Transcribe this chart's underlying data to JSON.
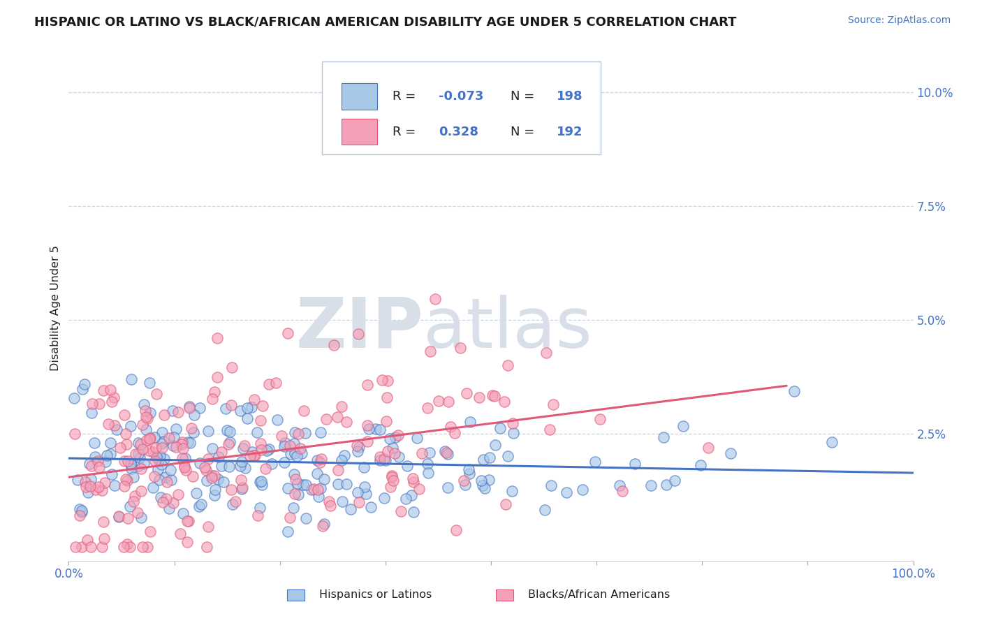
{
  "title": "HISPANIC OR LATINO VS BLACK/AFRICAN AMERICAN DISABILITY AGE UNDER 5 CORRELATION CHART",
  "source": "Source: ZipAtlas.com",
  "ylabel": "Disability Age Under 5",
  "xlim": [
    0.0,
    1.0
  ],
  "ylim": [
    -0.003,
    0.108
  ],
  "yticks": [
    0.025,
    0.05,
    0.075,
    0.1
  ],
  "ytick_labels": [
    "2.5%",
    "5.0%",
    "7.5%",
    "10.0%"
  ],
  "xticks": [
    0.0,
    0.125,
    0.25,
    0.375,
    0.5,
    0.625,
    0.75,
    0.875,
    1.0
  ],
  "xtick_labels": [
    "0.0%",
    "",
    "",
    "",
    "",
    "",
    "",
    "",
    "100.0%"
  ],
  "color_blue": "#a8c8e8",
  "color_pink": "#f4a0b8",
  "color_blue_line": "#4472c4",
  "color_pink_line": "#e05878",
  "watermark_zip": "ZIP",
  "watermark_atlas": "atlas",
  "watermark_color": "#d8dfe8",
  "background_color": "#ffffff",
  "N_blue": 198,
  "N_pink": 192,
  "R_blue": -0.073,
  "R_pink": 0.328,
  "legend_label_blue": "Hispanics or Latinos",
  "legend_label_pink": "Blacks/African Americans",
  "title_fontsize": 13,
  "source_fontsize": 10,
  "tick_color": "#4472c4",
  "text_color": "#222222",
  "grid_color": "#c8d4e0",
  "dot_size": 120,
  "dot_alpha": 0.65,
  "dot_edge_alpha": 0.9,
  "dot_linewidth": 1.0
}
